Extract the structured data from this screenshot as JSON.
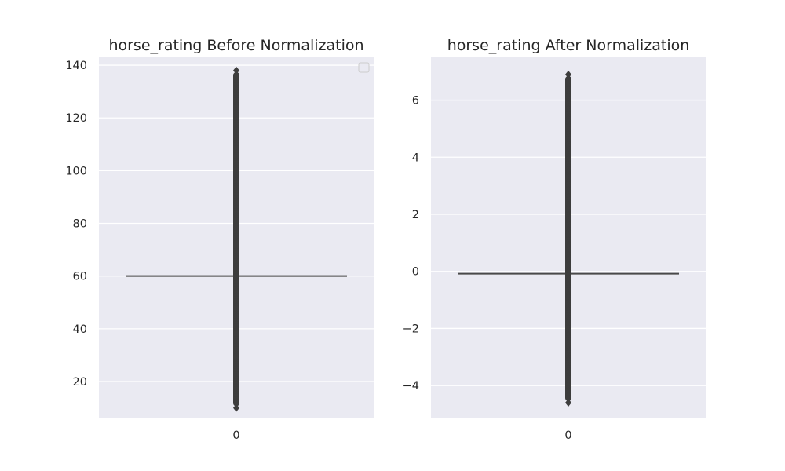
{
  "chart_data": [
    {
      "type": "box",
      "title": "horse_rating Before Normalization",
      "xlabel": "",
      "ylabel": "",
      "categories": [
        "0"
      ],
      "yticks": [
        20,
        40,
        60,
        80,
        100,
        120,
        140
      ],
      "ylim": [
        6,
        143
      ],
      "box": {
        "whisker_low": 60,
        "q1": 60,
        "median": 60,
        "q3": 60,
        "whisker_high": 60
      },
      "outlier_range": [
        10,
        138
      ],
      "grid": true,
      "legend": {
        "placement": "top-right",
        "entries": []
      },
      "colors": {
        "background": "#eaeaf2",
        "box_line": "#4a4a4a",
        "grid": "#ffffff"
      }
    },
    {
      "type": "box",
      "title": "horse_rating After Normalization",
      "xlabel": "",
      "ylabel": "",
      "categories": [
        "0"
      ],
      "yticks": [
        -4,
        -2,
        0,
        2,
        4,
        6
      ],
      "ylim": [
        -5.15,
        7.5
      ],
      "box": {
        "whisker_low": -0.08,
        "q1": -0.08,
        "median": -0.08,
        "q3": -0.08,
        "whisker_high": -0.08
      },
      "outlier_range": [
        -4.6,
        6.9
      ],
      "grid": true,
      "colors": {
        "background": "#eaeaf2",
        "box_line": "#4a4a4a",
        "grid": "#ffffff"
      }
    }
  ]
}
